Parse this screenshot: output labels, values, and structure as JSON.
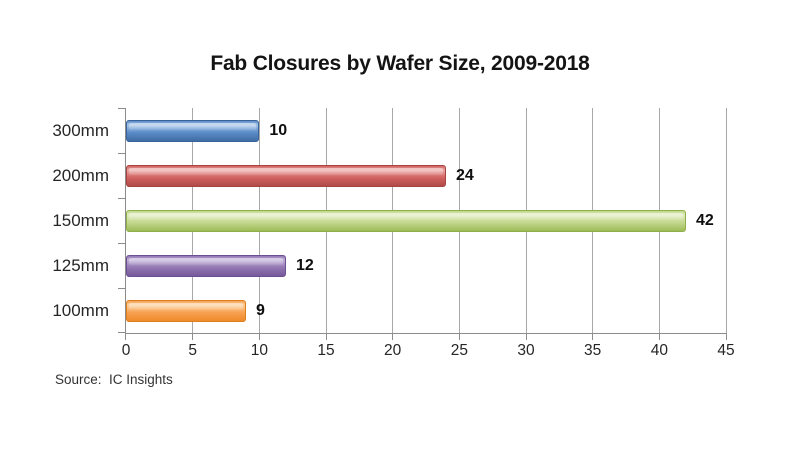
{
  "title": "Fab Closures by Wafer Size, 2009-2018",
  "source_note": "Source:  IC Insights",
  "colors": {
    "background": "#ffffff",
    "gridline": "#A8A8A8",
    "axis": "#8C8C8C",
    "title_text": "#141414",
    "label_text": "#262626"
  },
  "chart_data": {
    "type": "bar",
    "orientation": "horizontal",
    "title": "Fab Closures by Wafer Size, 2009-2018",
    "categories": [
      "300mm",
      "200mm",
      "150mm",
      "125mm",
      "100mm"
    ],
    "values": [
      10,
      24,
      42,
      12,
      9
    ],
    "xlabel": "",
    "ylabel": "",
    "xlim": [
      0,
      45
    ],
    "xticks": [
      0,
      5,
      10,
      15,
      20,
      25,
      30,
      35,
      40,
      45
    ],
    "grid": "vertical",
    "legend": "none",
    "data_labels": true,
    "series_colors": [
      {
        "name": "blue",
        "light": "#A6C5E8",
        "base": "#5B8CC9",
        "dark": "#3E6CA2",
        "border": "#38639B"
      },
      {
        "name": "red",
        "light": "#EBA7A4",
        "base": "#D2625F",
        "dark": "#B04B48",
        "border": "#A64441"
      },
      {
        "name": "green",
        "light": "#DFEBBA",
        "base": "#C3D78D",
        "dark": "#9DBB56",
        "border": "#8FAF4C"
      },
      {
        "name": "purple",
        "light": "#C0AFD7",
        "base": "#9277B3",
        "dark": "#75599B",
        "border": "#6B5191"
      },
      {
        "name": "orange",
        "light": "#FBD09A",
        "base": "#F8A050",
        "dark": "#EE8A2B",
        "border": "#DD7E1F"
      }
    ]
  }
}
